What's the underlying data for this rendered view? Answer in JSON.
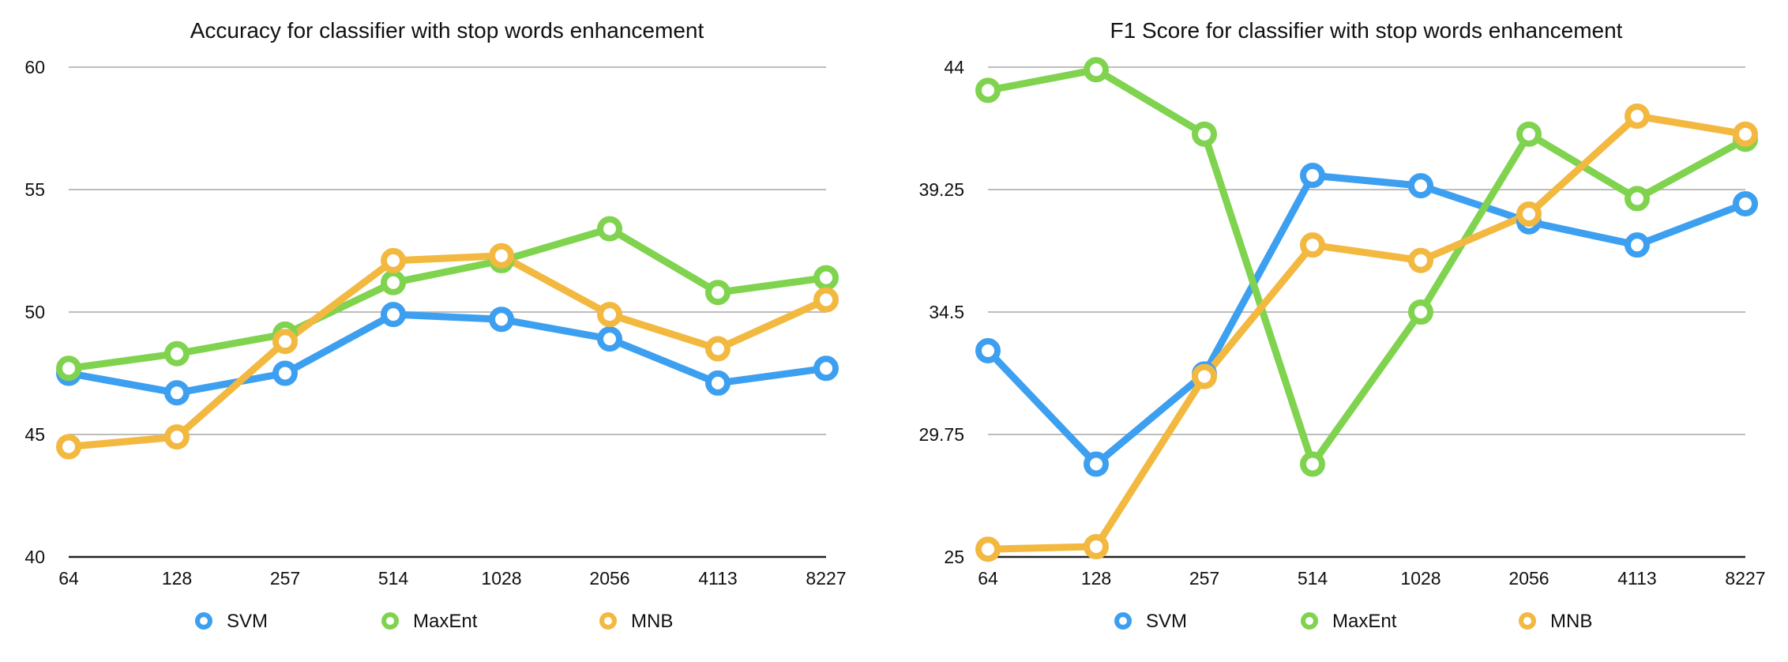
{
  "colors": {
    "SVM": "#3d9ff0",
    "MaxEnt": "#7fd34e",
    "MNB": "#f2b840"
  },
  "chart_data": [
    {
      "type": "line",
      "title": "Accuracy for classifier with stop words enhancement",
      "categories": [
        "64",
        "128",
        "257",
        "514",
        "1028",
        "2056",
        "4113",
        "8227"
      ],
      "yticks": [
        "40",
        "45",
        "50",
        "55",
        "60"
      ],
      "ylim": [
        40,
        60
      ],
      "grid": true,
      "legend": "bottom",
      "series": [
        {
          "name": "SVM",
          "values": [
            47.5,
            46.7,
            47.5,
            49.9,
            49.7,
            48.9,
            47.1,
            47.7
          ]
        },
        {
          "name": "MaxEnt",
          "values": [
            47.7,
            48.3,
            49.1,
            51.2,
            52.1,
            53.4,
            50.8,
            51.4
          ]
        },
        {
          "name": "MNB",
          "values": [
            44.5,
            44.9,
            48.8,
            52.1,
            52.3,
            49.9,
            48.5,
            50.5
          ]
        }
      ]
    },
    {
      "type": "line",
      "title": "F1 Score for classifier with stop words enhancement",
      "categories": [
        "64",
        "128",
        "257",
        "514",
        "1028",
        "2056",
        "4113",
        "8227"
      ],
      "yticks": [
        "25",
        "29.75",
        "34.5",
        "39.25",
        "44"
      ],
      "ylim": [
        25,
        44
      ],
      "grid": true,
      "legend": "bottom",
      "series": [
        {
          "name": "SVM",
          "values": [
            33.0,
            28.6,
            32.1,
            39.8,
            39.4,
            38.0,
            37.1,
            38.7
          ]
        },
        {
          "name": "MaxEnt",
          "values": [
            43.1,
            43.9,
            41.4,
            28.6,
            34.5,
            41.4,
            38.9,
            41.2
          ]
        },
        {
          "name": "MNB",
          "values": [
            25.3,
            25.4,
            32.0,
            37.1,
            36.5,
            38.3,
            42.1,
            41.4
          ]
        }
      ]
    }
  ]
}
